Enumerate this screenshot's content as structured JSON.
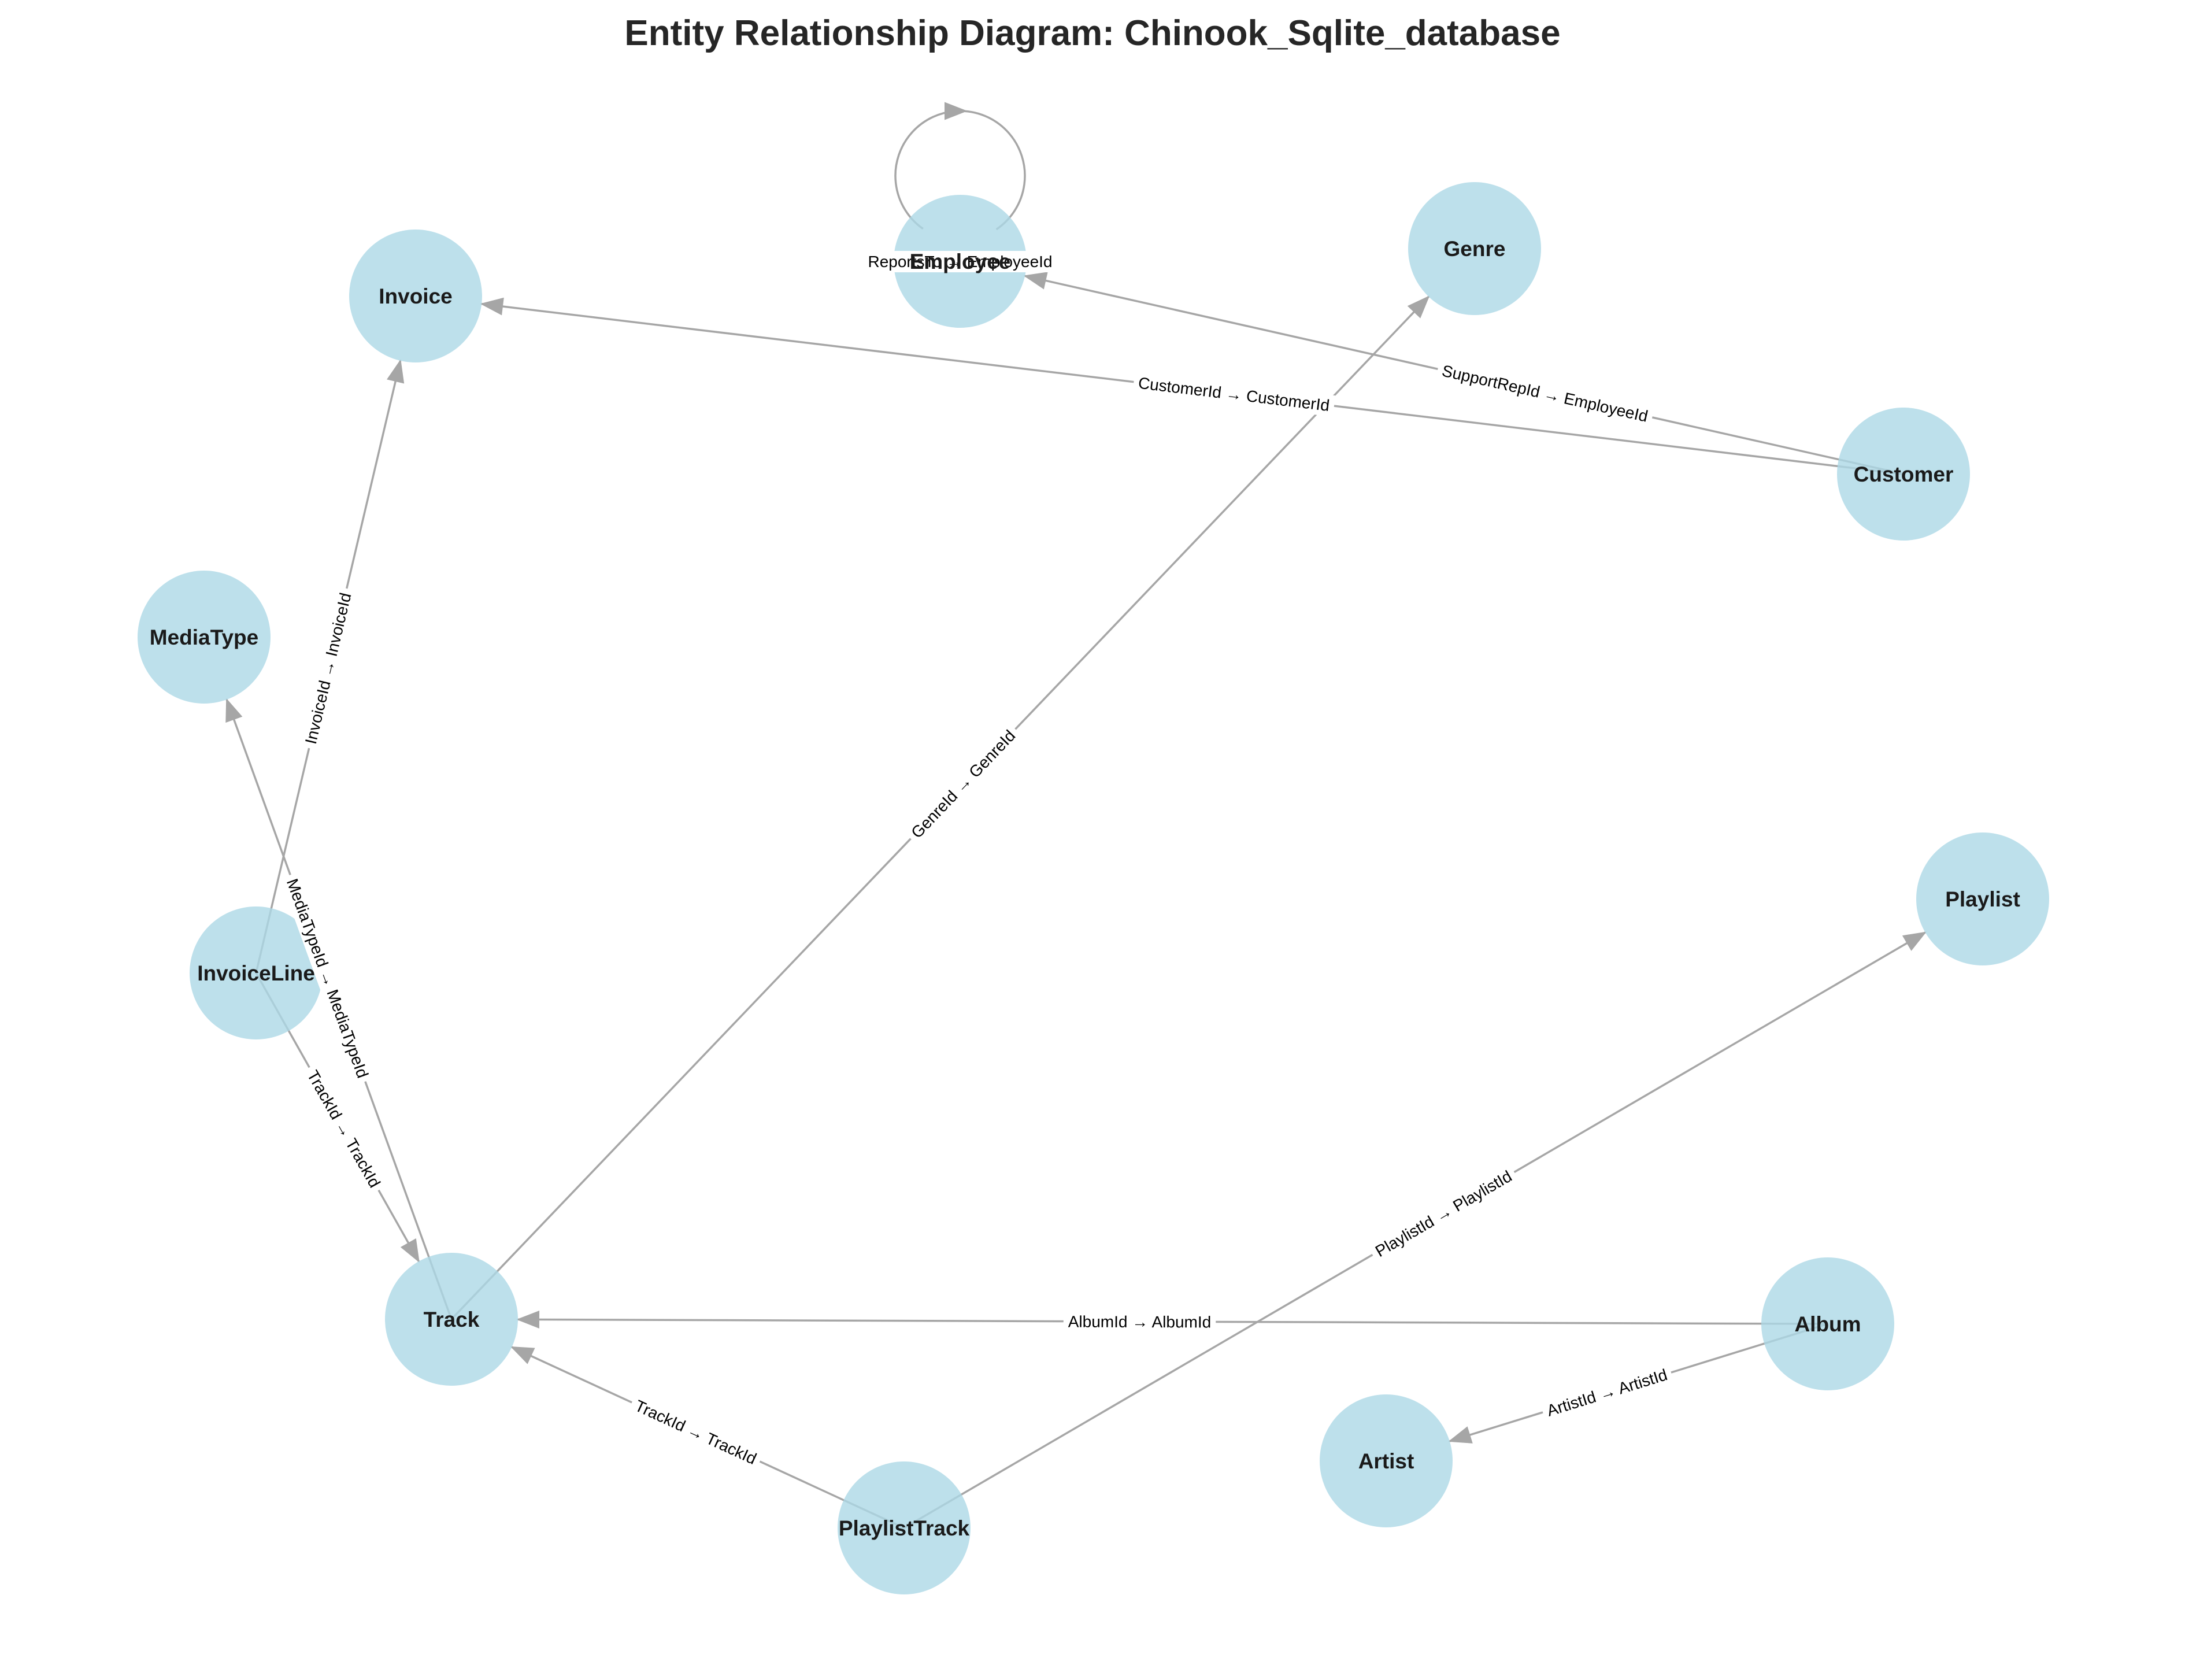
{
  "title": "Entity Relationship Diagram: Chinook_Sqlite_database",
  "colors": {
    "node_fill": "#add8e6",
    "edge": "#a6a6a6",
    "title": "#262626"
  },
  "nodes": [
    {
      "id": "Employee",
      "label": "Employee"
    },
    {
      "id": "Genre",
      "label": "Genre"
    },
    {
      "id": "Invoice",
      "label": "Invoice"
    },
    {
      "id": "Customer",
      "label": "Customer"
    },
    {
      "id": "MediaType",
      "label": "MediaType"
    },
    {
      "id": "Playlist",
      "label": "Playlist"
    },
    {
      "id": "InvoiceLine",
      "label": "InvoiceLine"
    },
    {
      "id": "Track",
      "label": "Track"
    },
    {
      "id": "Album",
      "label": "Album"
    },
    {
      "id": "Artist",
      "label": "Artist"
    },
    {
      "id": "PlaylistTrack",
      "label": "PlaylistTrack"
    }
  ],
  "edges": [
    {
      "from": "Employee",
      "to": "Employee",
      "label": "ReportsTo → EmployeeId"
    },
    {
      "from": "Customer",
      "to": "Employee",
      "label": "SupportRepId → EmployeeId"
    },
    {
      "from": "Customer",
      "to": "Invoice",
      "label": "CustomerId → CustomerId"
    },
    {
      "from": "InvoiceLine",
      "to": "Invoice",
      "label": "InvoiceId → InvoiceId"
    },
    {
      "from": "InvoiceLine",
      "to": "Track",
      "label": "TrackId → TrackId"
    },
    {
      "from": "Track",
      "to": "MediaType",
      "label": "MediaTypeId → MediaTypeId"
    },
    {
      "from": "Track",
      "to": "Genre",
      "label": "GenreId → GenreId"
    },
    {
      "from": "Album",
      "to": "Track",
      "label": "AlbumId → AlbumId"
    },
    {
      "from": "Album",
      "to": "Artist",
      "label": "ArtistId → ArtistId"
    },
    {
      "from": "PlaylistTrack",
      "to": "Track",
      "label": "TrackId → TrackId"
    },
    {
      "from": "PlaylistTrack",
      "to": "Playlist",
      "label": "PlaylistId → PlaylistId"
    }
  ]
}
